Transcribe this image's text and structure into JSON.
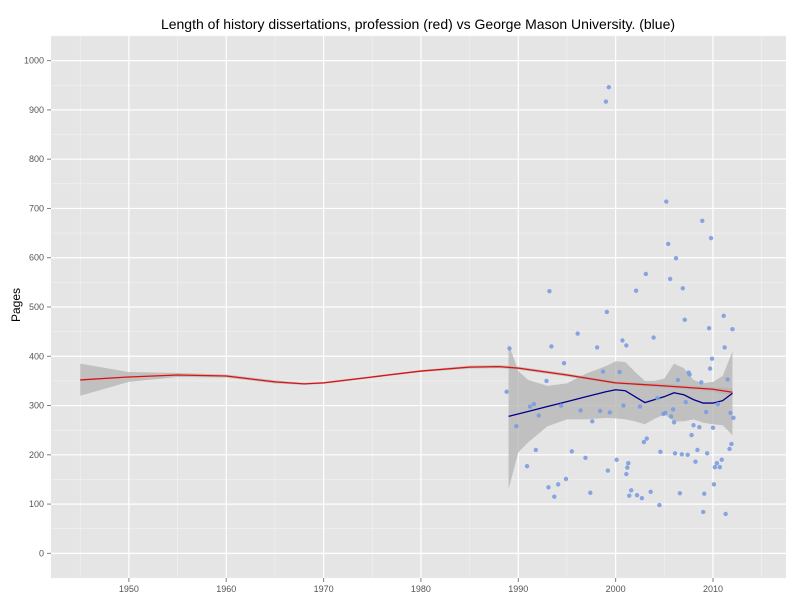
{
  "colors": {
    "panel": "#e5e5e5",
    "grid_major": "#ffffff",
    "grid_minor": "#f2f2f2",
    "points": "#7b9ce0",
    "gmu_line": "#00008b",
    "profession_line": "#dd1111",
    "ribbon": "#b3b3b3",
    "tick_text": "#555555"
  },
  "chart_data": {
    "type": "scatter",
    "title": "Length of history dissertations, profession (red) vs George Mason University. (blue)",
    "xlabel": "",
    "ylabel": "Pages",
    "xlim": [
      1942,
      2017.5
    ],
    "ylim": [
      -50,
      1050
    ],
    "x_ticks": [
      1950,
      1960,
      1970,
      1980,
      1990,
      2000,
      2010
    ],
    "y_ticks": [
      0,
      100,
      200,
      300,
      400,
      500,
      600,
      700,
      800,
      900,
      1000
    ],
    "grid": true,
    "legend": "none",
    "series": [
      {
        "kind": "points",
        "points": [
          [
            1988.8,
            328
          ],
          [
            1989.1,
            416
          ],
          [
            1989.8,
            258
          ],
          [
            1990.9,
            177
          ],
          [
            1991.2,
            298
          ],
          [
            1991.6,
            303
          ],
          [
            1991.8,
            210
          ],
          [
            1992.1,
            280
          ],
          [
            1992.9,
            350
          ],
          [
            1993.1,
            134
          ],
          [
            1993.2,
            532
          ],
          [
            1993.4,
            420
          ],
          [
            1993.7,
            115
          ],
          [
            1994.1,
            140
          ],
          [
            1994.4,
            300
          ],
          [
            1994.7,
            386
          ],
          [
            1994.9,
            151
          ],
          [
            1995.5,
            207
          ],
          [
            1996.1,
            446
          ],
          [
            1996.4,
            290
          ],
          [
            1996.9,
            194
          ],
          [
            1997.4,
            123
          ],
          [
            1997.6,
            268
          ],
          [
            1998.1,
            418
          ],
          [
            1998.4,
            289
          ],
          [
            1998.7,
            369
          ],
          [
            1999.0,
            917
          ],
          [
            1999.3,
            946
          ],
          [
            1999.1,
            490
          ],
          [
            1999.4,
            286
          ],
          [
            1999.2,
            168
          ],
          [
            2000.1,
            190
          ],
          [
            2000.4,
            368
          ],
          [
            2000.7,
            432
          ],
          [
            2000.8,
            300
          ],
          [
            2001.1,
            422
          ],
          [
            2001.3,
            183
          ],
          [
            2001.2,
            174
          ],
          [
            2001.1,
            161
          ],
          [
            2001.6,
            128
          ],
          [
            2001.4,
            117
          ],
          [
            2002.1,
            533
          ],
          [
            2002.2,
            118
          ],
          [
            2002.5,
            298
          ],
          [
            2002.7,
            112
          ],
          [
            2002.9,
            226
          ],
          [
            2003.1,
            567
          ],
          [
            2003.2,
            233
          ],
          [
            2003.6,
            125
          ],
          [
            2003.9,
            438
          ],
          [
            2004.3,
            315
          ],
          [
            2004.5,
            98
          ],
          [
            2004.6,
            206
          ],
          [
            2004.9,
            283
          ],
          [
            2005.1,
            285
          ],
          [
            2005.2,
            714
          ],
          [
            2005.4,
            628
          ],
          [
            2005.6,
            557
          ],
          [
            2005.7,
            278
          ],
          [
            2005.9,
            292
          ],
          [
            2006.0,
            266
          ],
          [
            2006.1,
            203
          ],
          [
            2006.2,
            599
          ],
          [
            2006.4,
            352
          ],
          [
            2006.6,
            122
          ],
          [
            2006.8,
            201
          ],
          [
            2006.9,
            538
          ],
          [
            2007.1,
            474
          ],
          [
            2007.2,
            307
          ],
          [
            2007.4,
            200
          ],
          [
            2007.5,
            367
          ],
          [
            2007.6,
            363
          ],
          [
            2007.8,
            240
          ],
          [
            2008.0,
            260
          ],
          [
            2008.2,
            186
          ],
          [
            2008.4,
            210
          ],
          [
            2008.6,
            256
          ],
          [
            2008.8,
            347
          ],
          [
            2008.9,
            675
          ],
          [
            2009.0,
            84
          ],
          [
            2009.1,
            121
          ],
          [
            2009.3,
            287
          ],
          [
            2009.4,
            203
          ],
          [
            2009.6,
            457
          ],
          [
            2009.7,
            375
          ],
          [
            2009.8,
            640
          ],
          [
            2009.9,
            395
          ],
          [
            2010.0,
            255
          ],
          [
            2010.1,
            140
          ],
          [
            2010.2,
            175
          ],
          [
            2010.4,
            183
          ],
          [
            2010.5,
            303
          ],
          [
            2010.7,
            175
          ],
          [
            2010.9,
            190
          ],
          [
            2011.1,
            482
          ],
          [
            2011.2,
            418
          ],
          [
            2011.3,
            80
          ],
          [
            2011.5,
            353
          ],
          [
            2011.7,
            212
          ],
          [
            2011.8,
            285
          ],
          [
            2012.0,
            455
          ],
          [
            2011.9,
            222
          ],
          [
            2012.1,
            275
          ]
        ]
      },
      {
        "kind": "smooth",
        "color_key": "profession_line",
        "line": [
          [
            1945,
            352
          ],
          [
            1950,
            358
          ],
          [
            1955,
            362
          ],
          [
            1960,
            360
          ],
          [
            1965,
            348
          ],
          [
            1968,
            344
          ],
          [
            1970,
            346
          ],
          [
            1975,
            358
          ],
          [
            1980,
            370
          ],
          [
            1985,
            378
          ],
          [
            1988,
            379
          ],
          [
            1990,
            376
          ],
          [
            1995,
            362
          ],
          [
            2000,
            346
          ],
          [
            2005,
            340
          ],
          [
            2010,
            333
          ],
          [
            2012,
            327
          ]
        ],
        "upper": [
          [
            1945,
            385
          ],
          [
            1950,
            368
          ],
          [
            1955,
            366
          ],
          [
            1960,
            363
          ],
          [
            1965,
            351
          ],
          [
            1968,
            346
          ],
          [
            1970,
            348
          ],
          [
            1975,
            360
          ],
          [
            1980,
            372
          ],
          [
            1985,
            381
          ],
          [
            1988,
            382
          ],
          [
            1990,
            379
          ],
          [
            1995,
            365
          ],
          [
            2000,
            349
          ],
          [
            2005,
            344
          ],
          [
            2010,
            337
          ],
          [
            2012,
            335
          ]
        ],
        "lower": [
          [
            1945,
            320
          ],
          [
            1950,
            348
          ],
          [
            1955,
            358
          ],
          [
            1960,
            357
          ],
          [
            1965,
            345
          ],
          [
            1968,
            342
          ],
          [
            1970,
            344
          ],
          [
            1975,
            356
          ],
          [
            1980,
            368
          ],
          [
            1985,
            375
          ],
          [
            1988,
            376
          ],
          [
            1990,
            373
          ],
          [
            1995,
            359
          ],
          [
            2000,
            343
          ],
          [
            2005,
            336
          ],
          [
            2010,
            329
          ],
          [
            2012,
            319
          ]
        ]
      },
      {
        "kind": "smooth",
        "color_key": "gmu_line",
        "line": [
          [
            1989,
            278
          ],
          [
            1991,
            288
          ],
          [
            1993,
            298
          ],
          [
            1995,
            308
          ],
          [
            1997,
            318
          ],
          [
            1999,
            328
          ],
          [
            2000,
            332
          ],
          [
            2001,
            330
          ],
          [
            2002,
            318
          ],
          [
            2003,
            306
          ],
          [
            2004,
            312
          ],
          [
            2005,
            318
          ],
          [
            2006,
            326
          ],
          [
            2007,
            322
          ],
          [
            2008,
            312
          ],
          [
            2009,
            305
          ],
          [
            2010,
            305
          ],
          [
            2011,
            310
          ],
          [
            2012,
            325
          ]
        ],
        "upper": [
          [
            1989,
            425
          ],
          [
            1990,
            370
          ],
          [
            1991,
            352
          ],
          [
            1993,
            340
          ],
          [
            1995,
            345
          ],
          [
            1997,
            365
          ],
          [
            1999,
            380
          ],
          [
            2000,
            390
          ],
          [
            2001,
            388
          ],
          [
            2002,
            368
          ],
          [
            2003,
            350
          ],
          [
            2004,
            350
          ],
          [
            2005,
            355
          ],
          [
            2006,
            385
          ],
          [
            2007,
            376
          ],
          [
            2008,
            352
          ],
          [
            2009,
            345
          ],
          [
            2010,
            348
          ],
          [
            2011,
            360
          ],
          [
            2012,
            410
          ]
        ],
        "lower": [
          [
            1989,
            130
          ],
          [
            1990,
            205
          ],
          [
            1991,
            225
          ],
          [
            1993,
            258
          ],
          [
            1995,
            272
          ],
          [
            1997,
            272
          ],
          [
            1999,
            275
          ],
          [
            2000,
            274
          ],
          [
            2001,
            272
          ],
          [
            2002,
            268
          ],
          [
            2003,
            262
          ],
          [
            2004,
            273
          ],
          [
            2005,
            282
          ],
          [
            2006,
            268
          ],
          [
            2007,
            268
          ],
          [
            2008,
            272
          ],
          [
            2009,
            265
          ],
          [
            2010,
            262
          ],
          [
            2011,
            260
          ],
          [
            2012,
            240
          ]
        ]
      }
    ]
  }
}
